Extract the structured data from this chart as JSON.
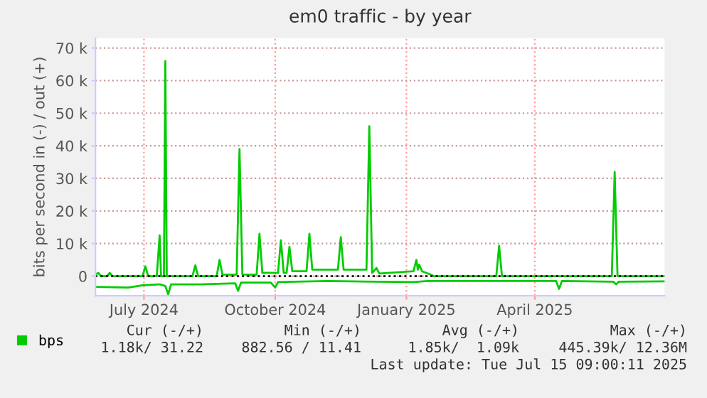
{
  "chart_data": {
    "type": "line",
    "title": "em0 traffic - by year",
    "ylabel": "bits per second in (-) / out (+)",
    "xlim": [
      "2024-06-11",
      "2025-07-15"
    ],
    "xticks": [
      {
        "value": "2024-07-15",
        "label": "July 2024"
      },
      {
        "value": "2024-10-15",
        "label": "October 2024"
      },
      {
        "value": "2025-01-15",
        "label": "January 2025"
      },
      {
        "value": "2025-04-15",
        "label": "April 2025"
      }
    ],
    "ylim": [
      -6000,
      73000
    ],
    "yticks": [
      0,
      {
        "value": 10000,
        "label": "10 k"
      },
      {
        "value": 20000,
        "label": "20 k"
      },
      {
        "value": 30000,
        "label": "30 k"
      },
      {
        "value": 40000,
        "label": "40 k"
      },
      {
        "value": 50000,
        "label": "50 k"
      },
      {
        "value": 60000,
        "label": "60 k"
      },
      {
        "value": 70000,
        "label": "70 k"
      }
    ],
    "grid": true,
    "legend": "bottom left",
    "line_style": "solid",
    "marker": "none",
    "ref_lines": [
      {
        "axis": "y",
        "value": 0,
        "color": "#000000",
        "line_style": "dotted"
      }
    ],
    "series": [
      {
        "name": "bps",
        "color": "#00cc00",
        "x": [
          "2024-06-11",
          "2024-06-13",
          "2024-06-15",
          "2024-06-19",
          "2024-06-21",
          "2024-06-23",
          "2024-07-14",
          "2024-07-16",
          "2024-07-18",
          "2024-07-24",
          "2024-07-26",
          "2024-07-27",
          "2024-07-29",
          "2024-07-30",
          "2024-07-31",
          "2024-08-18",
          "2024-08-20",
          "2024-08-22",
          "2024-09-04",
          "2024-09-06",
          "2024-09-08",
          "2024-09-18",
          "2024-09-20",
          "2024-09-22",
          "2024-10-02",
          "2024-10-04",
          "2024-10-06",
          "2024-10-17",
          "2024-10-19",
          "2024-10-21",
          "2024-10-23",
          "2024-10-25",
          "2024-10-27",
          "2024-11-06",
          "2024-11-08",
          "2024-11-10",
          "2024-11-28",
          "2024-11-30",
          "2024-12-02",
          "2024-12-18",
          "2024-12-20",
          "2024-12-22",
          "2024-12-25",
          "2024-12-27",
          "2025-01-20",
          "2025-01-22",
          "2025-01-23",
          "2025-01-24",
          "2025-01-26",
          "2025-02-01",
          "2025-02-03",
          "2025-03-19",
          "2025-03-21",
          "2025-03-23",
          "2025-06-08",
          "2025-06-10",
          "2025-06-12",
          "2025-07-15"
        ],
        "values": [
          500,
          1000,
          0,
          0,
          1000,
          0,
          0,
          3000,
          0,
          0,
          12500,
          0,
          0,
          66000,
          0,
          0,
          3300,
          0,
          0,
          5000,
          500,
          500,
          39000,
          500,
          500,
          13000,
          1000,
          1000,
          11000,
          1000,
          1000,
          9000,
          1500,
          1500,
          13000,
          2000,
          2000,
          12000,
          2000,
          2000,
          46000,
          1000,
          2500,
          800,
          1500,
          5000,
          2000,
          3500,
          1500,
          500,
          0,
          0,
          9300,
          0,
          0,
          32000,
          0,
          0
        ]
      },
      {
        "color": "#00cc00",
        "x": [
          "2024-06-11",
          "2024-07-04",
          "2024-07-14",
          "2024-07-26",
          "2024-07-30",
          "2024-08-01",
          "2024-08-03",
          "2024-08-23",
          "2024-09-17",
          "2024-09-19",
          "2024-09-21",
          "2024-10-12",
          "2024-10-15",
          "2024-10-17",
          "2024-11-21",
          "2024-12-26",
          "2025-01-20",
          "2025-01-30",
          "2025-03-11",
          "2025-04-30",
          "2025-05-02",
          "2025-05-04",
          "2025-06-09",
          "2025-06-11",
          "2025-06-13",
          "2025-07-15"
        ],
        "values": [
          -3300,
          -3500,
          -2800,
          -2500,
          -3000,
          -5600,
          -2500,
          -2500,
          -2200,
          -4500,
          -2000,
          -2000,
          -3500,
          -1800,
          -1500,
          -1700,
          -1800,
          -1500,
          -1500,
          -1500,
          -3900,
          -1500,
          -1700,
          -2500,
          -1700,
          -1600
        ]
      }
    ],
    "annotations": [
      "Cur (-/+)",
      "Min (-/+)",
      "Avg (-/+)",
      "Max (-/+)",
      "1.18k/ 31.22",
      "882.56 / 11.41",
      "1.85k/  1.09k",
      "445.39k/ 12.36M",
      "Last update: Tue Jul 15 09:00:11 2025"
    ]
  }
}
